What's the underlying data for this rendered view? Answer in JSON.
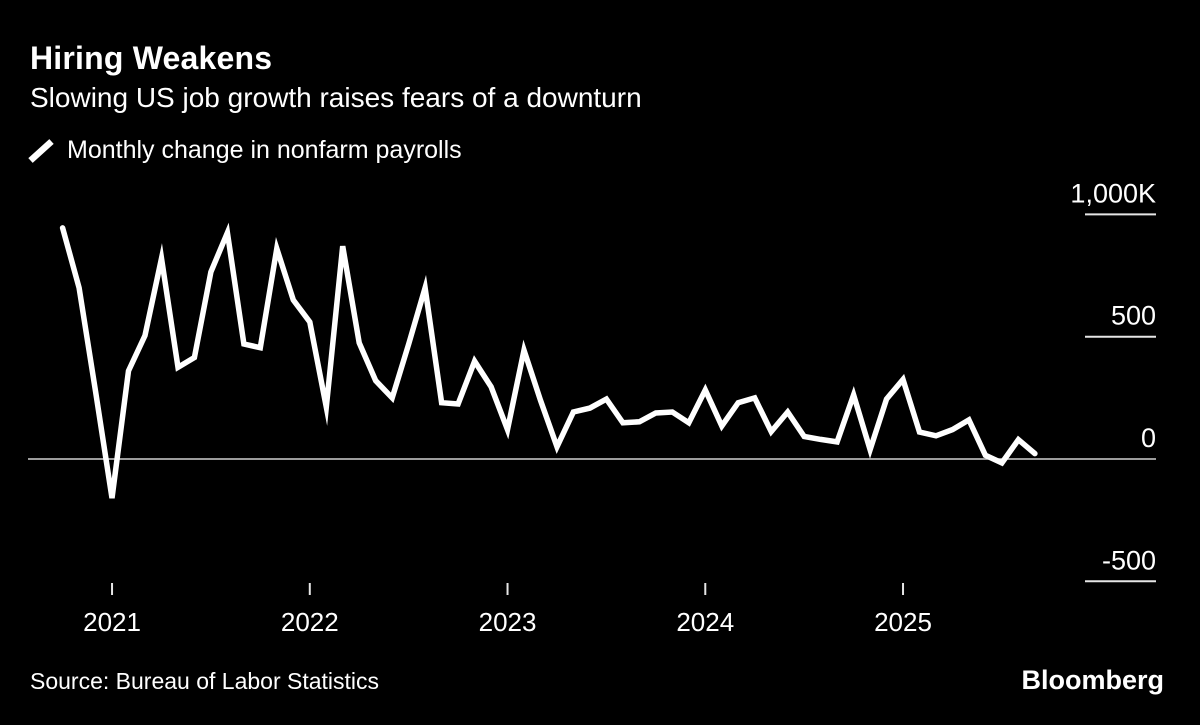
{
  "header": {
    "title": "Hiring Weakens",
    "subtitle": "Slowing US job growth raises fears of a downturn"
  },
  "legend": {
    "items": [
      {
        "marker": "slash-line-icon",
        "label": "Monthly change in nonfarm payrolls",
        "color": "#ffffff"
      }
    ]
  },
  "footer": {
    "source": "Source: Bureau of Labor Statistics",
    "brand": "Bloomberg"
  },
  "colors": {
    "background": "#000000",
    "text": "#ffffff",
    "series_line": "#ffffff",
    "zero_line": "#cfcfcf",
    "tick": "#e6e6e6"
  },
  "chart_data": {
    "type": "line",
    "series_name": "Monthly change in nonfarm payrolls",
    "unit": "thousands of jobs (K)",
    "baseline": 0,
    "ylim": [
      -650,
      1120
    ],
    "grid": "off",
    "legend_position": "top-left",
    "y_axis_side": "right",
    "x": [
      "Sep 2020",
      "Oct 2020",
      "Nov 2020",
      "Dec 2020",
      "Jan 2021",
      "Feb 2021",
      "Mar 2021",
      "Apr 2021",
      "May 2021",
      "Jun 2021",
      "Jul 2021",
      "Aug 2021",
      "Sep 2021",
      "Oct 2021",
      "Nov 2021",
      "Dec 2021",
      "Jan 2022",
      "Feb 2022",
      "Mar 2022",
      "Apr 2022",
      "May 2022",
      "Jun 2022",
      "Jul 2022",
      "Aug 2022",
      "Sep 2022",
      "Oct 2022",
      "Nov 2022",
      "Dec 2022",
      "Jan 2023",
      "Feb 2023",
      "Mar 2023",
      "Apr 2023",
      "May 2023",
      "Jun 2023",
      "Jul 2023",
      "Aug 2023",
      "Sep 2023",
      "Oct 2023",
      "Nov 2023",
      "Dec 2023",
      "Jan 2024",
      "Feb 2024",
      "Mar 2024",
      "Apr 2024",
      "May 2024",
      "Jun 2024",
      "Jul 2024",
      "Aug 2024",
      "Sep 2024",
      "Oct 2024",
      "Nov 2024",
      "Dec 2024",
      "Jan 2025",
      "Feb 2025",
      "Mar 2025",
      "Apr 2025",
      "May 2025",
      "Jun 2025",
      "Jul 2025",
      "Aug 2025"
    ],
    "values": [
      945,
      700,
      275,
      -160,
      360,
      505,
      820,
      375,
      415,
      765,
      925,
      470,
      455,
      860,
      650,
      560,
      212,
      870,
      475,
      320,
      250,
      470,
      700,
      230,
      225,
      400,
      295,
      120,
      445,
      240,
      50,
      192,
      208,
      245,
      148,
      152,
      188,
      192,
      148,
      282,
      135,
      230,
      250,
      112,
      192,
      92,
      80,
      70,
      262,
      38,
      245,
      325,
      110,
      95,
      120,
      160,
      15,
      -16,
      79,
      22
    ],
    "y_ticks": [
      {
        "label": "1,000K",
        "value": 1000
      },
      {
        "label": "500",
        "value": 500
      },
      {
        "label": "0",
        "value": 0
      },
      {
        "label": "-500",
        "value": -500
      }
    ],
    "x_ticks": [
      {
        "label": "2021",
        "index": 3
      },
      {
        "label": "2022",
        "index": 15
      },
      {
        "label": "2023",
        "index": 27
      },
      {
        "label": "2024",
        "index": 39
      },
      {
        "label": "2025",
        "index": 51
      }
    ]
  }
}
